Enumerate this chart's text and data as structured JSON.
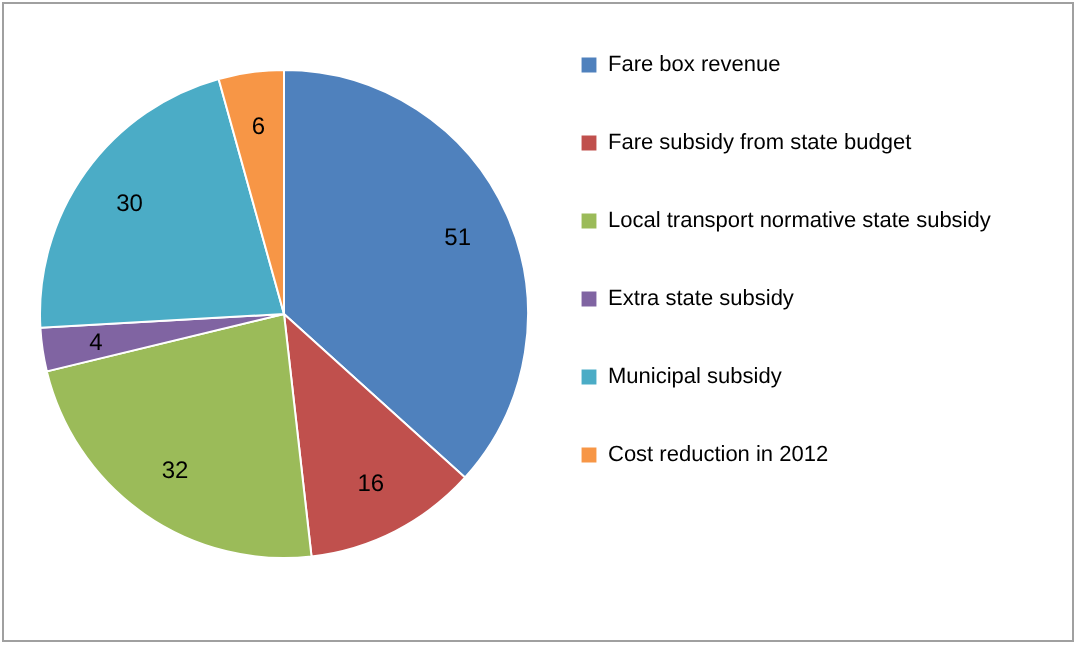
{
  "chart_data": {
    "type": "pie",
    "categories": [
      "Fare box revenue",
      "Fare subsidy from state budget",
      "Local transport normative state subsidy",
      "Extra state subsidy",
      "Municipal subsidy",
      "Cost reduction in 2012"
    ],
    "values": [
      51,
      16,
      32,
      4,
      30,
      6
    ],
    "colors": [
      "#4f81bd",
      "#c0504d",
      "#9bbb59",
      "#8064a2",
      "#4bacc6",
      "#f79646"
    ],
    "data_labels": true,
    "legend": "right"
  }
}
